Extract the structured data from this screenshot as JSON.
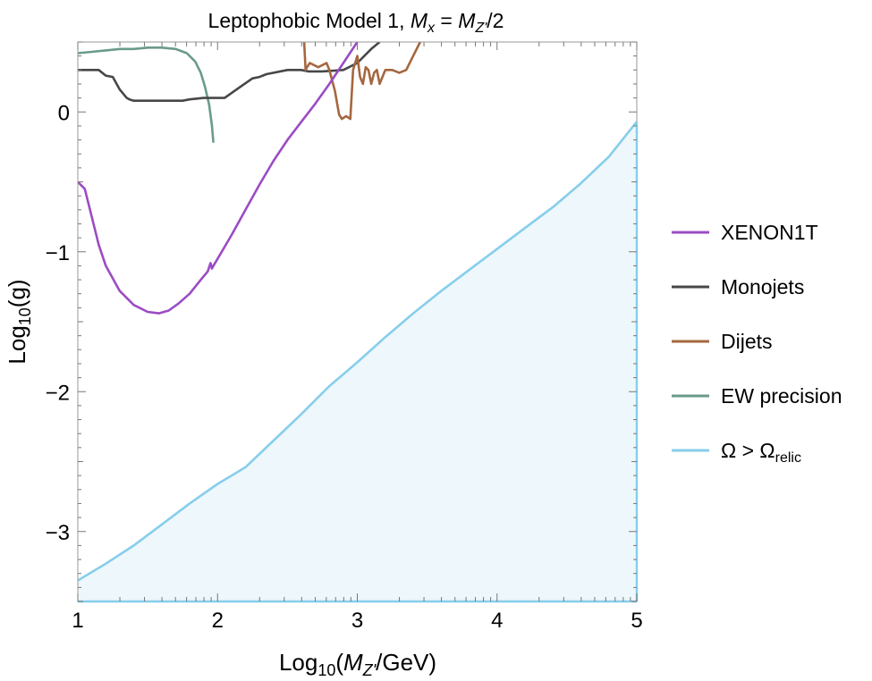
{
  "chart_data": {
    "type": "line",
    "title": {
      "prefix": "Leptophobic Model 1, ",
      "m": "M",
      "x_sub": "x",
      "eq": " = ",
      "z_sub": "Z'",
      "suffix": "/2"
    },
    "xlabel": {
      "prefix": "Log",
      "sub": "10",
      "open": "(",
      "m": "M",
      "msub": "Z'",
      "suffix": "/GeV)"
    },
    "ylabel": {
      "prefix": "Log",
      "sub": "10",
      "suffix": "(g)"
    },
    "xlim": [
      1,
      5
    ],
    "ylim": [
      -3.5,
      0.5
    ],
    "xticks": [
      1,
      2,
      3,
      4,
      5
    ],
    "xtick_labels": [
      "1",
      "2",
      "3",
      "4",
      "5"
    ],
    "yticks": [
      0,
      -1,
      -2,
      -3
    ],
    "ytick_labels": [
      "0",
      "−1",
      "−2",
      "−3"
    ],
    "series": [
      {
        "name": "XENON1T",
        "color": "#9b4cc4",
        "x": [
          1.0,
          1.05,
          1.1,
          1.15,
          1.2,
          1.3,
          1.4,
          1.5,
          1.58,
          1.65,
          1.72,
          1.8,
          1.88,
          1.93,
          1.95,
          1.96,
          1.97,
          2.0,
          2.1,
          2.2,
          2.3,
          2.4,
          2.5,
          2.6,
          2.7,
          2.8,
          2.9,
          3.0
        ],
        "values": [
          -0.5,
          -0.55,
          -0.75,
          -0.95,
          -1.1,
          -1.28,
          -1.38,
          -1.43,
          -1.44,
          -1.42,
          -1.37,
          -1.3,
          -1.2,
          -1.14,
          -1.08,
          -1.12,
          -1.1,
          -1.05,
          -0.88,
          -0.7,
          -0.52,
          -0.35,
          -0.2,
          -0.07,
          0.06,
          0.2,
          0.35,
          0.5
        ]
      },
      {
        "name": "Monojets",
        "color": "#474747",
        "x": [
          1.0,
          1.15,
          1.2,
          1.25,
          1.3,
          1.35,
          1.37,
          1.4,
          1.5,
          1.6,
          1.75,
          1.8,
          1.9,
          2.05,
          2.15,
          2.25,
          2.3,
          2.35,
          2.5,
          2.6,
          2.65,
          2.75,
          2.9,
          3.0,
          3.1,
          3.16
        ],
        "values": [
          0.3,
          0.3,
          0.26,
          0.25,
          0.16,
          0.1,
          0.09,
          0.08,
          0.08,
          0.08,
          0.08,
          0.09,
          0.1,
          0.1,
          0.17,
          0.24,
          0.25,
          0.27,
          0.3,
          0.3,
          0.29,
          0.29,
          0.3,
          0.35,
          0.45,
          0.5
        ]
      },
      {
        "name": "Dijets",
        "color": "#a5673f",
        "x": [
          2.62,
          2.63,
          2.64,
          2.66,
          2.72,
          2.78,
          2.8,
          2.84,
          2.87,
          2.89,
          2.92,
          2.95,
          2.97,
          3.0,
          3.02,
          3.04,
          3.06,
          3.08,
          3.1,
          3.12,
          3.14,
          3.16,
          3.2,
          3.25,
          3.3,
          3.35,
          3.4,
          3.45
        ],
        "values": [
          0.5,
          0.3,
          0.32,
          0.35,
          0.32,
          0.35,
          0.3,
          0.15,
          -0.02,
          -0.05,
          -0.03,
          -0.05,
          0.3,
          0.4,
          0.25,
          0.2,
          0.32,
          0.3,
          0.2,
          0.28,
          0.3,
          0.2,
          0.3,
          0.3,
          0.28,
          0.3,
          0.4,
          0.5
        ]
      },
      {
        "name": "EW precision",
        "color": "#6a9b8a",
        "x": [
          1.0,
          1.1,
          1.2,
          1.3,
          1.4,
          1.5,
          1.6,
          1.7,
          1.78,
          1.84,
          1.88,
          1.91,
          1.94,
          1.96,
          1.97
        ],
        "values": [
          0.42,
          0.43,
          0.44,
          0.45,
          0.45,
          0.46,
          0.46,
          0.45,
          0.42,
          0.36,
          0.28,
          0.18,
          0.05,
          -0.1,
          -0.22
        ]
      },
      {
        "name": "Ω > Ωrelic",
        "color": "#87ceeb",
        "fill": "#eef7fb",
        "x": [
          1.0,
          1.2,
          1.4,
          1.6,
          1.8,
          2.0,
          2.2,
          2.4,
          2.6,
          2.8,
          3.0,
          3.2,
          3.4,
          3.6,
          3.8,
          4.0,
          4.2,
          4.4,
          4.6,
          4.8,
          5.0
        ],
        "values": [
          -3.35,
          -3.23,
          -3.1,
          -2.95,
          -2.8,
          -2.66,
          -2.54,
          -2.35,
          -2.16,
          -1.96,
          -1.79,
          -1.61,
          -1.44,
          -1.28,
          -1.13,
          -0.98,
          -0.83,
          -0.68,
          -0.51,
          -0.32,
          -0.07
        ]
      }
    ],
    "legend": {
      "placement": "right",
      "entries": [
        {
          "label": "XENON1T",
          "color": "#9b4cc4"
        },
        {
          "label": "Monojets",
          "color": "#474747"
        },
        {
          "label": "Dijets",
          "color": "#a5673f"
        },
        {
          "label": "EW precision",
          "color": "#6a9b8a"
        },
        {
          "label": "Ω > Ω",
          "sub": "relic",
          "color": "#87ceeb"
        }
      ]
    }
  }
}
